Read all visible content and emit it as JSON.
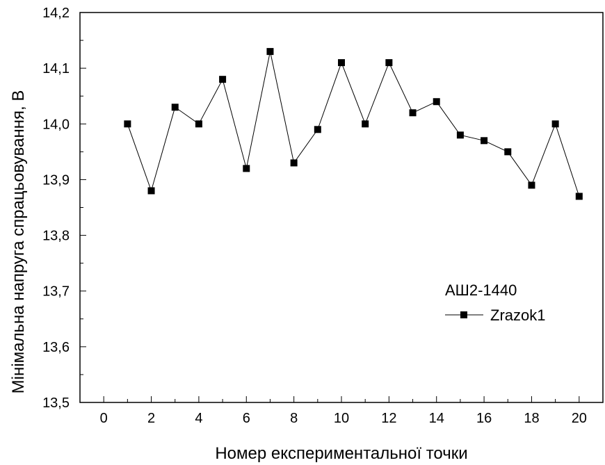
{
  "chart_data": {
    "type": "line",
    "title": "",
    "xlabel": "Номер експериментальної точки",
    "ylabel": "Мінімальна напруга спрацьовування, В",
    "xlim": [
      -1,
      21
    ],
    "ylim": [
      13.5,
      14.2
    ],
    "x_ticks": [
      "0",
      "2",
      "4",
      "6",
      "8",
      "10",
      "12",
      "14",
      "16",
      "18",
      "20"
    ],
    "y_ticks": [
      "13,5",
      "13,6",
      "13,7",
      "13,8",
      "13,9",
      "14,0",
      "14,1",
      "14,2"
    ],
    "legend": {
      "title": "АШ2-1440",
      "placement": "right-center"
    },
    "grid": false,
    "series": [
      {
        "name": "Zrazok1",
        "marker": "square",
        "color": "#000000",
        "x": [
          1,
          2,
          3,
          4,
          5,
          6,
          7,
          8,
          9,
          10,
          11,
          12,
          13,
          14,
          15,
          16,
          17,
          18,
          19,
          20
        ],
        "y": [
          14.0,
          13.88,
          14.03,
          14.0,
          14.08,
          13.92,
          14.13,
          13.93,
          13.99,
          14.11,
          14.0,
          14.11,
          14.02,
          14.04,
          13.98,
          13.97,
          13.95,
          13.89,
          14.0,
          13.87
        ]
      }
    ]
  }
}
